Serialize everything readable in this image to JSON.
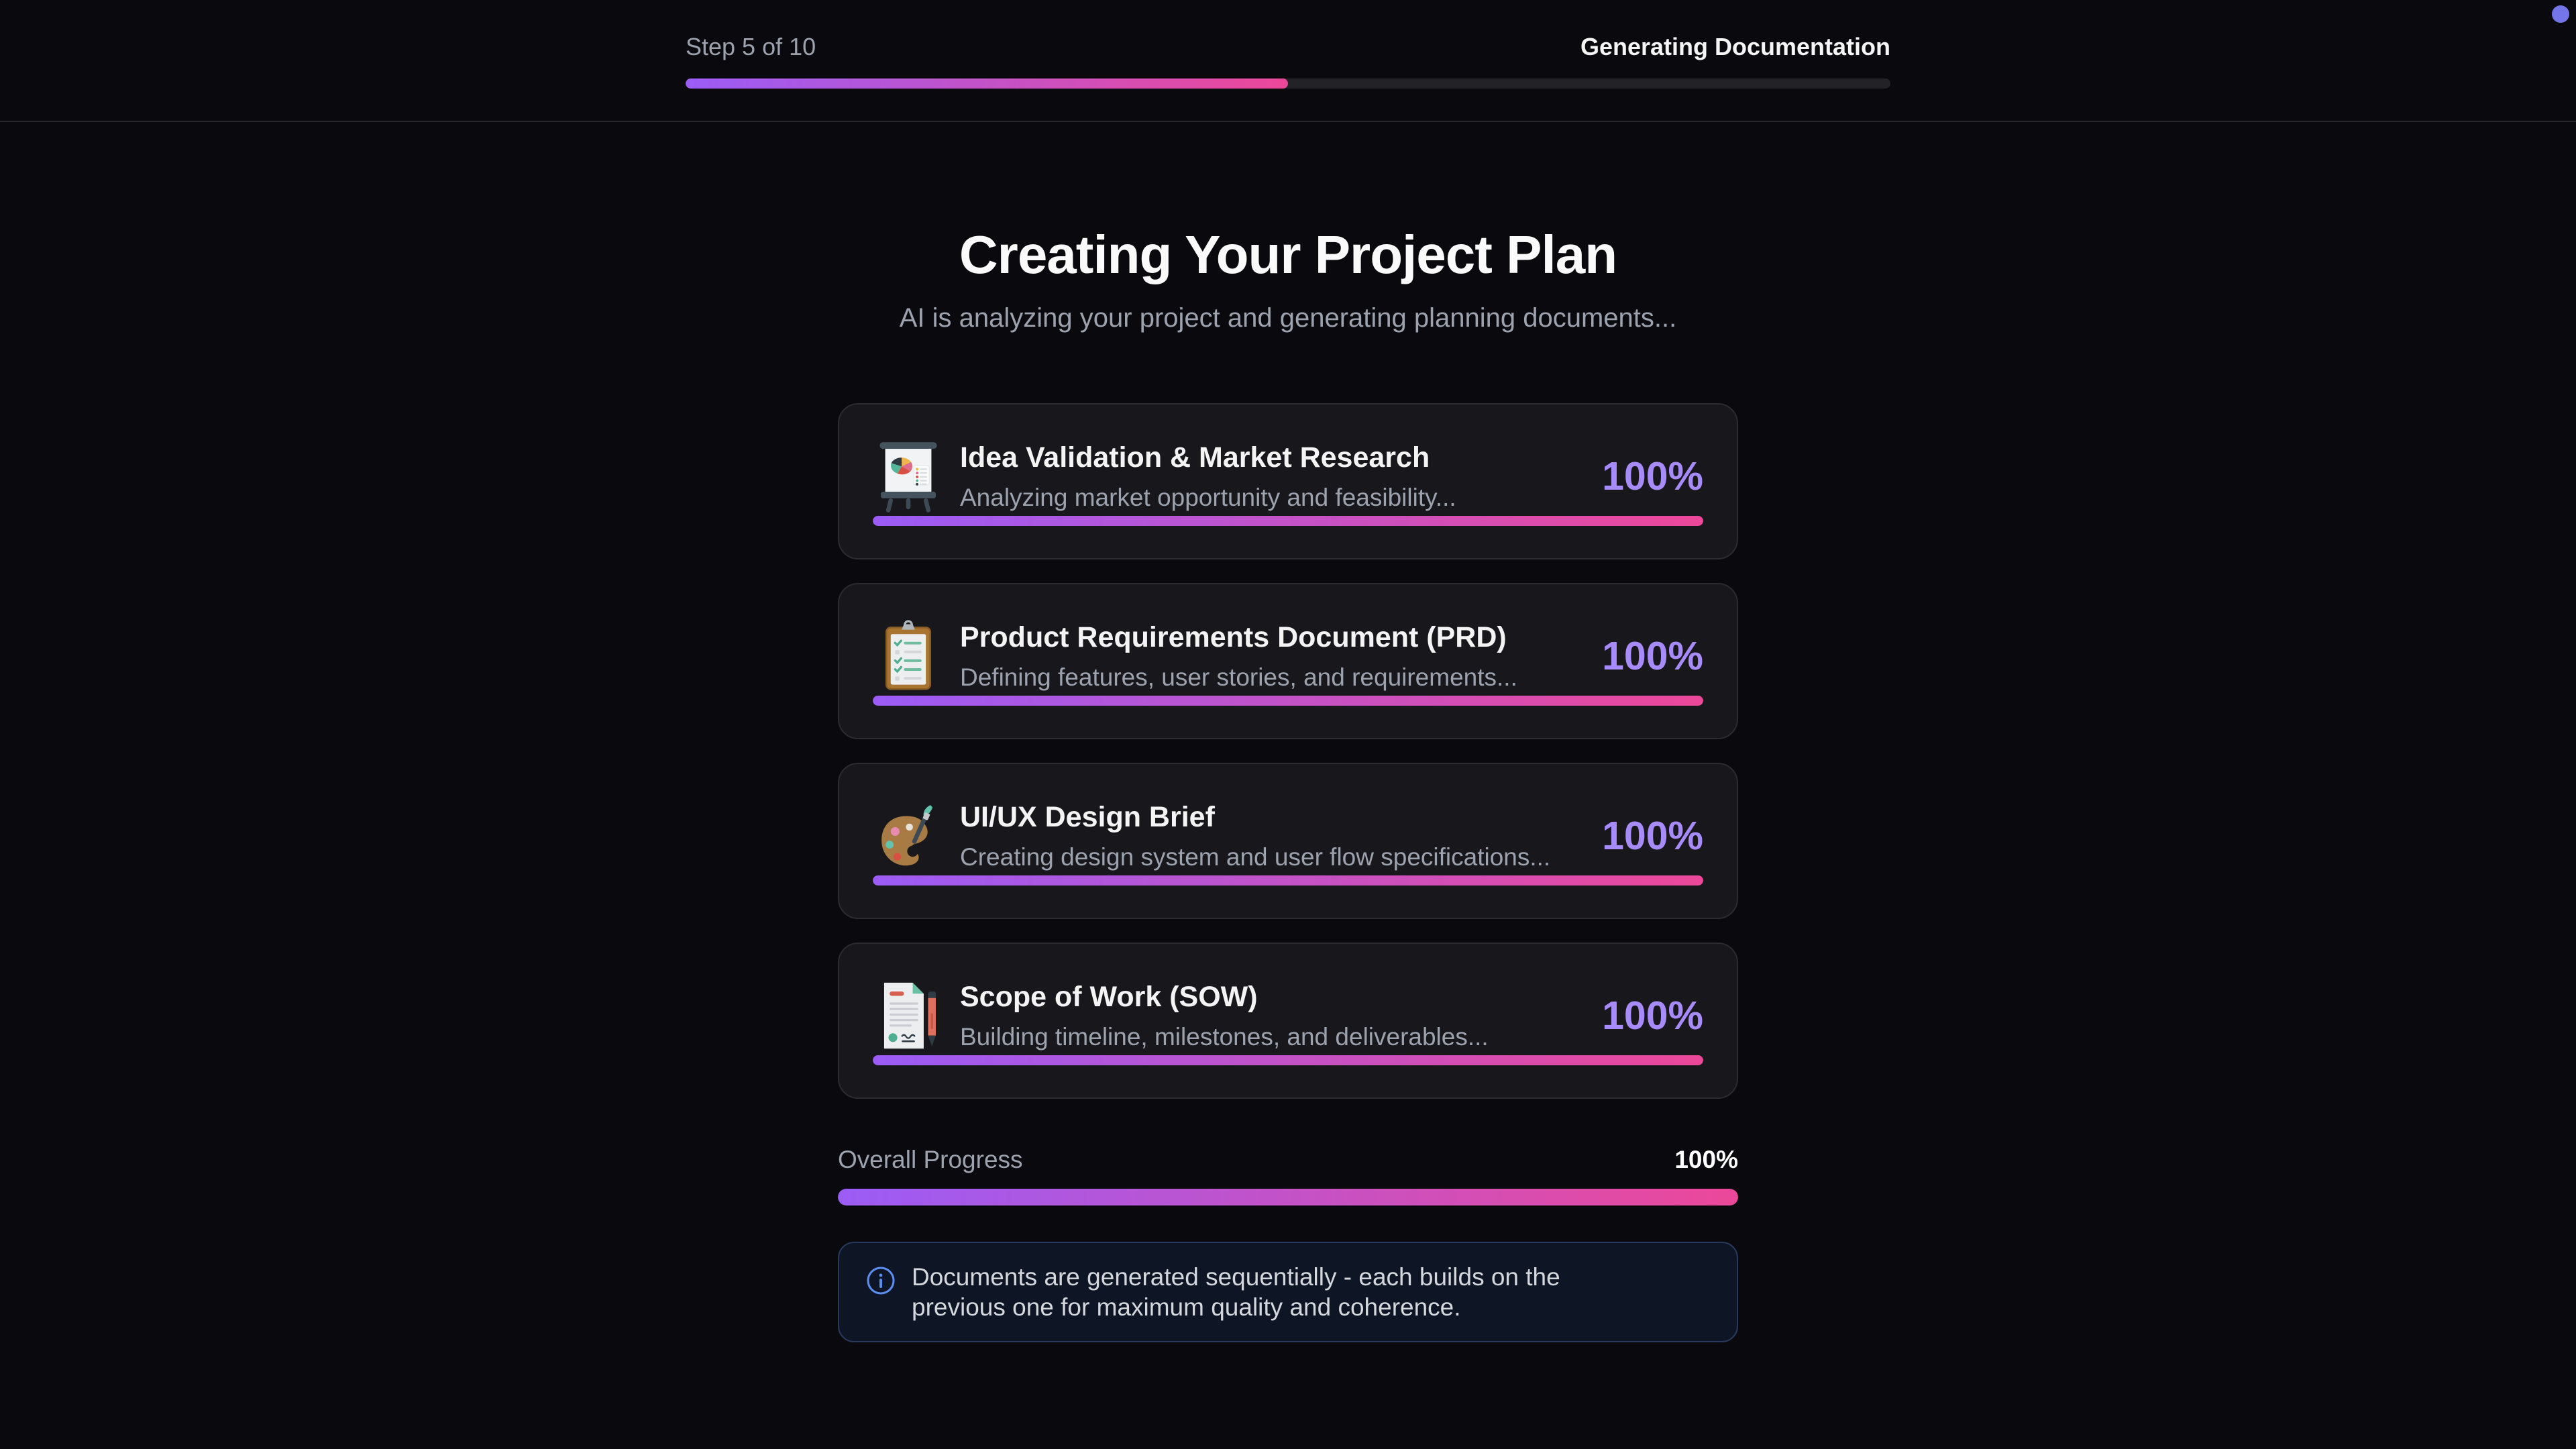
{
  "colors": {
    "background": "#0a0a0e",
    "card_background": "#18181c",
    "accent_gradient_from": "#9b5cf6",
    "accent_gradient_to": "#ec4899",
    "percent_accent": "#a78bfa",
    "info_border": "#28395c",
    "status_dot": "#7375e9"
  },
  "header": {
    "step_label": "Step 5 of 10",
    "phase_label": "Generating Documentation",
    "progress": 50
  },
  "hero": {
    "title": "Creating Your Project Plan",
    "subtitle": "AI is analyzing your project and generating planning documents..."
  },
  "documents": [
    {
      "icon": "presentation-pie-chart-icon",
      "title": "Idea Validation & Market Research",
      "description": "Analyzing market opportunity and feasibility...",
      "percent_label": "100%",
      "progress": 100
    },
    {
      "icon": "clipboard-checklist-icon",
      "title": "Product Requirements Document (PRD)",
      "description": "Defining features, user stories, and requirements...",
      "percent_label": "100%",
      "progress": 100
    },
    {
      "icon": "art-palette-icon",
      "title": "UI/UX Design Brief",
      "description": "Creating design system and user flow specifications...",
      "percent_label": "100%",
      "progress": 100
    },
    {
      "icon": "document-with-pen-icon",
      "title": "Scope of Work (SOW)",
      "description": "Building timeline, milestones, and deliverables...",
      "percent_label": "100%",
      "progress": 100
    }
  ],
  "overall": {
    "label": "Overall Progress",
    "percent_label": "100%",
    "progress": 100
  },
  "info": {
    "icon": "info-circle-icon",
    "text": "Documents are generated sequentially - each builds on the previous one for maximum quality and coherence."
  }
}
